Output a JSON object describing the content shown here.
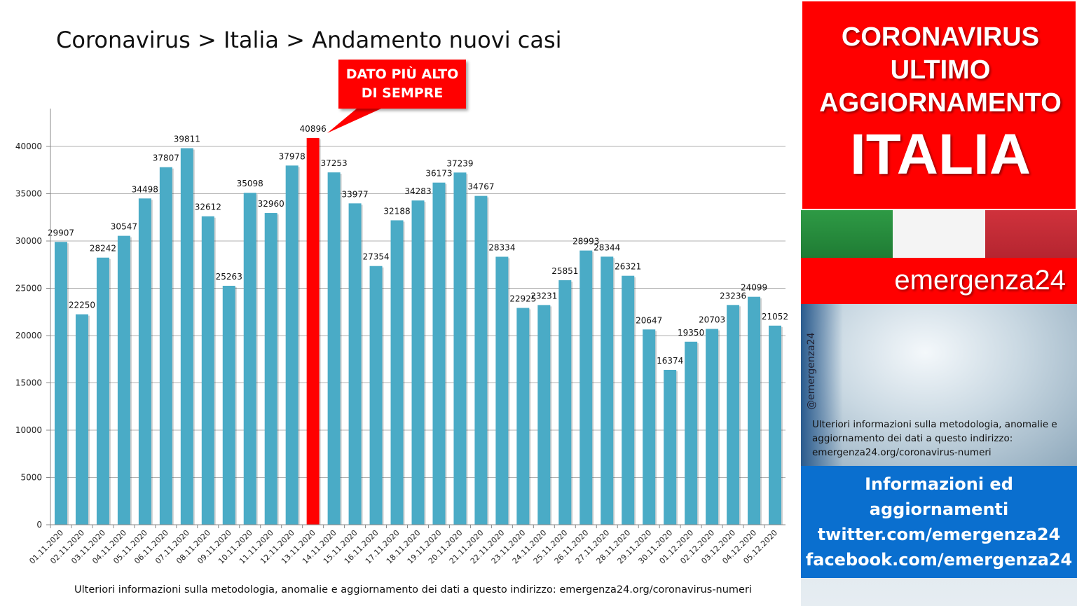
{
  "title": "Coronavirus > Italia > Andamento nuovi casi",
  "callout": {
    "line1": "DATO PIÙ ALTO",
    "line2": "DI SEMPRE"
  },
  "footer_note": "Ulteriori informazioni sulla metodologia, anomalie e aggiornamento dei dati a questo indirizzo: emergenza24.org/coronavirus-numeri",
  "panel": {
    "header_lines": [
      "CORONAVIRUS",
      "ULTIMO",
      "AGGIORNAMENTO"
    ],
    "country": "ITALIA",
    "brand": "emergenza24",
    "handle": "@emergenza24",
    "note": "Ulteriori informazioni sulla metodologia, anomalie e aggiornamento dei dati a questo indirizzo: emergenza24.org/coronavirus-numeri",
    "info_lines": [
      "Informazioni ed",
      "aggiornamenti",
      "twitter.com/emergenza24",
      "facebook.com/emergenza24"
    ]
  },
  "colors": {
    "bar": "#4aabc6",
    "highlight": "#ff0000",
    "grid": "#b0b0b0"
  },
  "chart_data": {
    "type": "bar",
    "categories": [
      "01.11.2020",
      "02.11.2020",
      "03.11.2020",
      "04.11.2020",
      "05.11.2020",
      "06.11.2020",
      "07.11.2020",
      "08.11.2020",
      "09.11.2020",
      "10.11.2020",
      "11.11.2020",
      "12.11.2020",
      "13.11.2020",
      "14.11.2020",
      "15.11.2020",
      "16.11.2020",
      "17.11.2020",
      "18.11.2020",
      "19.11.2020",
      "20.11.2020",
      "21.11.2020",
      "22.11.2020",
      "23.11.2020",
      "24.11.2020",
      "25.11.2020",
      "26.11.2020",
      "27.11.2020",
      "28.11.2020",
      "29.11.2020",
      "30.11.2020",
      "01.12.2020",
      "02.12.2020",
      "03.12.2020",
      "04.12.2020",
      "05.12.2020"
    ],
    "values": [
      29907,
      22250,
      28242,
      30547,
      34498,
      37807,
      39811,
      32612,
      25263,
      35098,
      32960,
      37978,
      40896,
      37253,
      33977,
      27354,
      32188,
      34283,
      36173,
      37239,
      34767,
      28334,
      22925,
      23231,
      25851,
      28993,
      28344,
      26321,
      20647,
      16374,
      19350,
      20703,
      23236,
      24099,
      21052
    ],
    "highlight_index": 12,
    "yticks": [
      0,
      5000,
      10000,
      15000,
      20000,
      25000,
      30000,
      35000,
      40000
    ],
    "ylim": [
      0,
      44000
    ],
    "grid": true,
    "legend": "none"
  }
}
